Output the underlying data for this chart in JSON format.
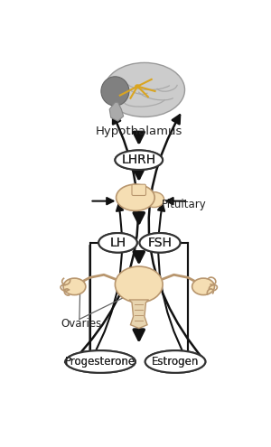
{
  "bg_color": "#ffffff",
  "fig_width": 3.0,
  "fig_height": 4.95,
  "dpi": 100,
  "hypothalamus_label": "Hypothalamus",
  "lhrh_label": "LHRH",
  "pituitary_label": "Pituitary",
  "lh_label": "LH",
  "fsh_label": "FSH",
  "ovaries_label": "Ovaries",
  "progesterone_label": "Progesterone",
  "estrogen_label": "Estrogen",
  "ellipse_edge": "#333333",
  "text_color": "#222222",
  "arrow_color": "#111111",
  "pituitary_fill": "#f5deb3",
  "brain_gray": "#c8c8c8",
  "brain_dark": "#888888",
  "organ_fill": "#f5e6c8",
  "organ_edge": "#b8966e"
}
